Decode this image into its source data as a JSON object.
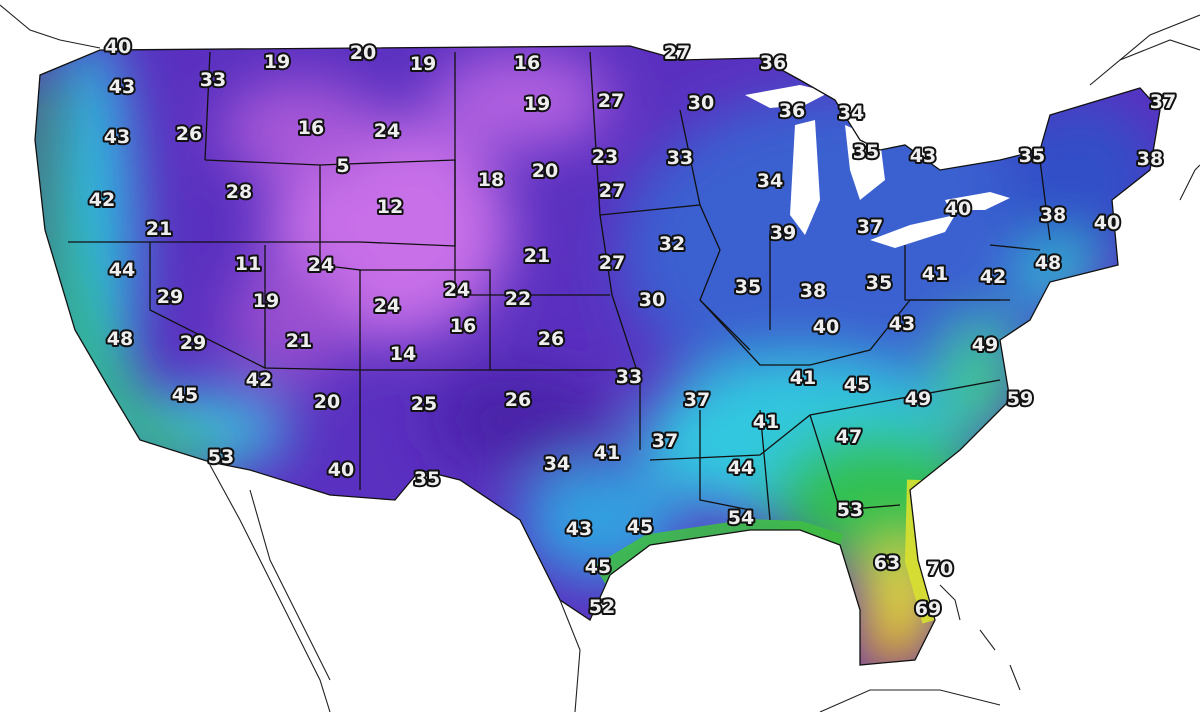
{
  "map": {
    "type": "temperature map",
    "region": "contiguous United States",
    "colors": {
      "coldest": "#c870e8",
      "cold": "#5a30c0",
      "cool": "#3a60d0",
      "mild": "#30c0e0",
      "warm": "#30c050",
      "warmer": "#e8e030",
      "warmest": "#f0a010"
    },
    "labels": [
      "40",
      "43",
      "33",
      "19",
      "20",
      "19",
      "16",
      "27",
      "36",
      "37",
      "43",
      "26",
      "16",
      "24",
      "19",
      "27",
      "30",
      "36",
      "34",
      "5",
      "28",
      "42",
      "12",
      "18",
      "20",
      "23",
      "33",
      "35",
      "43",
      "35",
      "38",
      "27",
      "34",
      "40",
      "38",
      "40",
      "21",
      "32",
      "39",
      "37",
      "44",
      "11",
      "24",
      "21",
      "27",
      "41",
      "42",
      "48",
      "29",
      "19",
      "24",
      "24",
      "22",
      "30",
      "35",
      "38",
      "35",
      "48",
      "29",
      "21",
      "16",
      "26",
      "40",
      "43",
      "49",
      "14",
      "42",
      "33",
      "41",
      "45",
      "45",
      "20",
      "25",
      "26",
      "37",
      "49",
      "59",
      "41",
      "47",
      "37",
      "41",
      "53",
      "40",
      "35",
      "34",
      "44",
      "43",
      "45",
      "54",
      "53",
      "63",
      "70",
      "45",
      "52",
      "69"
    ]
  }
}
